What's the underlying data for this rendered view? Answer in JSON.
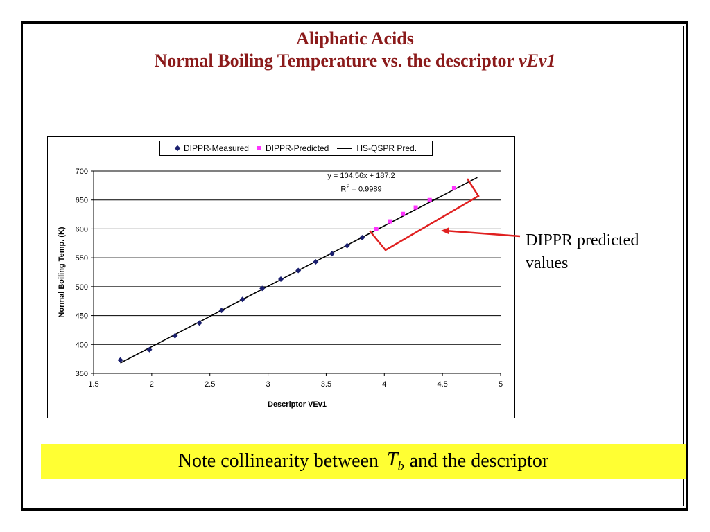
{
  "slide": {
    "title_line1": "Aliphatic Acids",
    "title_line2_plain": "Normal Boiling Temperature vs. the descriptor ",
    "title_line2_italic": "vEv1",
    "annotation": "DIPPR predicted values",
    "note_before": "Note collinearity between",
    "note_T": "T",
    "note_sub": "b",
    "note_after": "and the descriptor",
    "colors": {
      "title": "#8b1a1a",
      "highlight": "#ffff33",
      "bracket": "#e02020",
      "measured": "#1a1f6e",
      "predicted": "#ff33ff"
    }
  },
  "chart_data": {
    "type": "scatter",
    "title": "",
    "xlabel": "Descriptor VEv1",
    "ylabel": "Normal Boiling Temp. (K)",
    "xlim": [
      1.5,
      5
    ],
    "ylim": [
      350,
      700
    ],
    "x_ticks": [
      "1.5",
      "2",
      "2.5",
      "3",
      "3.5",
      "4",
      "4.5",
      "5"
    ],
    "y_ticks": [
      "350",
      "400",
      "450",
      "500",
      "550",
      "600",
      "650",
      "700"
    ],
    "grid": "horizontal",
    "legend_position": "top",
    "series": [
      {
        "name": "DIPPR-Measured",
        "marker": "diamond",
        "x": [
          1.73,
          1.98,
          2.2,
          2.41,
          2.6,
          2.78,
          2.95,
          3.11,
          3.26,
          3.41,
          3.55,
          3.68,
          3.81
        ],
        "y": [
          373,
          391,
          415,
          437,
          459,
          478,
          497,
          513,
          528,
          543,
          557,
          571,
          585
        ]
      },
      {
        "name": "DIPPR-Predicted",
        "marker": "square",
        "x": [
          3.93,
          4.05,
          4.16,
          4.27,
          4.39,
          4.6
        ],
        "y": [
          600,
          613,
          626,
          637,
          650,
          671
        ]
      },
      {
        "name": "HS-QSPR Pred.",
        "marker": "line",
        "x": [
          1.73,
          4.8
        ],
        "y": [
          368,
          689
        ]
      }
    ],
    "trendline": {
      "equation": "y = 104.56x + 187.2",
      "r2_prefix": "R",
      "r2_sup": "2",
      "r2_suffix": " = 0.9989"
    }
  }
}
